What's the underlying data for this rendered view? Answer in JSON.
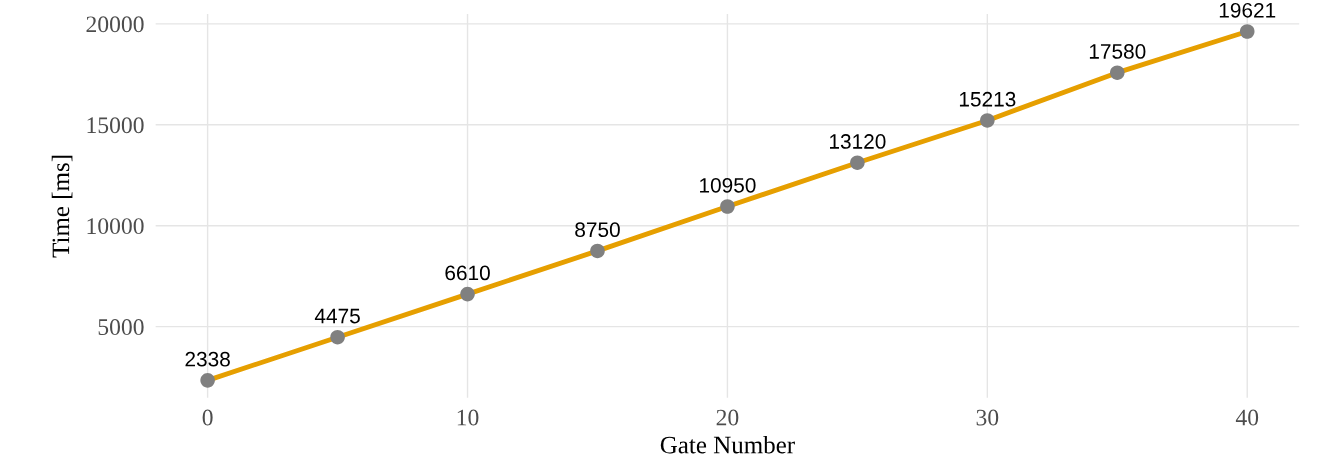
{
  "chart_data": {
    "type": "line",
    "xlabel": "Gate Number",
    "ylabel": "Time [ms]",
    "x": [
      0,
      5,
      10,
      15,
      20,
      25,
      30,
      35,
      40
    ],
    "series": [
      {
        "color": "#e69f00",
        "values": [
          2338,
          4475,
          6610,
          8750,
          10950,
          13120,
          15213,
          17580,
          19621
        ]
      },
      {
        "type": "scatter",
        "color": "#808080",
        "marker": "circle",
        "values": [
          2338,
          4475,
          6610,
          8750,
          10950,
          13120,
          15213,
          17580,
          19621
        ],
        "value_labels": [
          "2338",
          "4475",
          "6610",
          "8750",
          "10950",
          "13120",
          "15213",
          "17580",
          "19621"
        ]
      }
    ],
    "grid": true,
    "xlim": [
      -2,
      42
    ],
    "xticks": [
      0,
      10,
      20,
      30,
      40
    ],
    "ylim": [
      1474,
      20485
    ],
    "yticks": [
      5000,
      10000,
      15000,
      20000
    ]
  }
}
